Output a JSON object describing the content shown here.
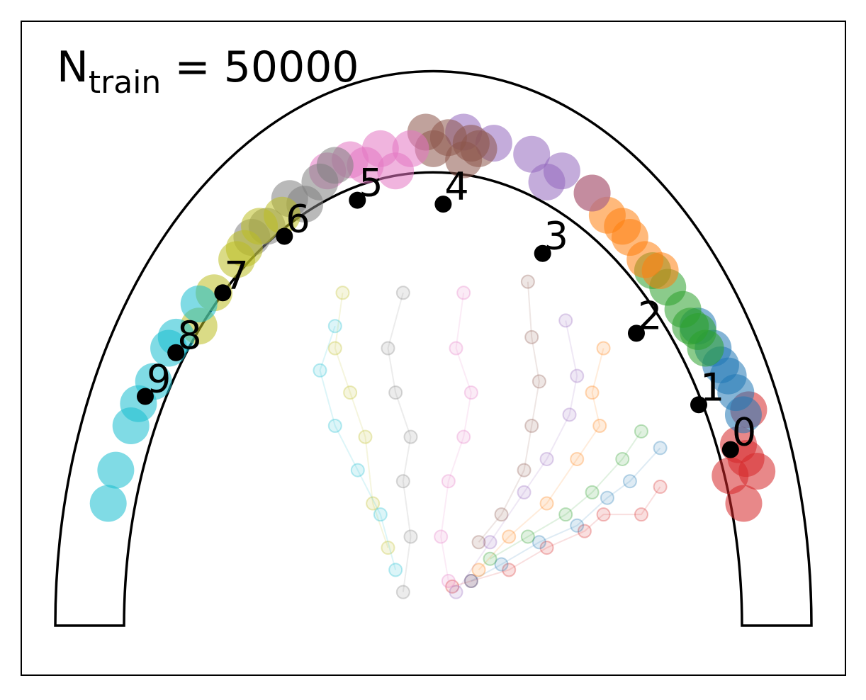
{
  "chart_data": {
    "type": "scatter",
    "annotation": {
      "main": "N",
      "sub": "train",
      "rest": " = 50000"
    },
    "xlim": [
      -1.09,
      1.09
    ],
    "ylim": [
      -0.09,
      1.09
    ],
    "points": {
      "labels": [
        "0",
        "1",
        "2",
        "3",
        "4",
        "5",
        "6",
        "7",
        "8",
        "9"
      ],
      "x": [
        0.786,
        0.702,
        0.537,
        0.289,
        0.026,
        -0.201,
        -0.394,
        -0.557,
        -0.681,
        -0.762
      ],
      "y": [
        0.317,
        0.398,
        0.527,
        0.671,
        0.76,
        0.767,
        0.702,
        0.6,
        0.492,
        0.413
      ],
      "color": "#000000"
    },
    "series": [
      {
        "color": "#d62728",
        "x": [
          0.821,
          0.856,
          0.807,
          0.834,
          0.827,
          0.785
        ],
        "y": [
          0.22,
          0.278,
          0.326,
          0.389,
          0.301,
          0.27
        ],
        "trail_x": [
          0.6,
          0.55,
          0.45,
          0.4,
          0.3,
          0.2,
          0.1,
          0.05
        ],
        "trail_y": [
          0.25,
          0.2,
          0.2,
          0.17,
          0.14,
          0.1,
          0.08,
          0.07
        ]
      },
      {
        "color": "#1f77b4",
        "x": [
          0.82,
          0.78,
          0.74,
          0.8,
          0.7,
          0.76
        ],
        "y": [
          0.38,
          0.45,
          0.5,
          0.42,
          0.54,
          0.47
        ],
        "trail_x": [
          0.6,
          0.52,
          0.46,
          0.38,
          0.28,
          0.18,
          0.1
        ],
        "trail_y": [
          0.32,
          0.26,
          0.23,
          0.18,
          0.15,
          0.11,
          0.08
        ]
      },
      {
        "color": "#2ca02c",
        "x": [
          0.72,
          0.66,
          0.62,
          0.68,
          0.58,
          0.7
        ],
        "y": [
          0.5,
          0.57,
          0.61,
          0.54,
          0.64,
          0.53
        ],
        "trail_x": [
          0.55,
          0.5,
          0.42,
          0.35,
          0.25,
          0.15
        ],
        "trail_y": [
          0.35,
          0.3,
          0.24,
          0.2,
          0.16,
          0.12
        ]
      },
      {
        "color": "#ff7f0e",
        "x": [
          0.6,
          0.52,
          0.46,
          0.56,
          0.42,
          0.5
        ],
        "y": [
          0.64,
          0.7,
          0.74,
          0.66,
          0.78,
          0.72
        ],
        "trail_x": [
          0.45,
          0.42,
          0.44,
          0.38,
          0.3,
          0.2,
          0.12
        ],
        "trail_y": [
          0.5,
          0.42,
          0.36,
          0.3,
          0.22,
          0.16,
          0.1
        ]
      },
      {
        "color": "#9467bd",
        "x": [
          0.42,
          0.34,
          0.26,
          0.16,
          0.08,
          0.3
        ],
        "y": [
          0.78,
          0.82,
          0.85,
          0.87,
          0.89,
          0.8
        ],
        "trail_x": [
          0.35,
          0.38,
          0.36,
          0.3,
          0.24,
          0.15,
          0.06
        ],
        "trail_y": [
          0.55,
          0.45,
          0.38,
          0.3,
          0.24,
          0.15,
          0.06
        ]
      },
      {
        "color": "#8c564b",
        "x": [
          0.12,
          0.04,
          -0.02,
          0.08,
          0,
          0.1
        ],
        "y": [
          0.86,
          0.88,
          0.89,
          0.84,
          0.86,
          0.87
        ],
        "trail_x": [
          0.25,
          0.26,
          0.28,
          0.26,
          0.24,
          0.18,
          0.12
        ],
        "trail_y": [
          0.62,
          0.52,
          0.44,
          0.36,
          0.28,
          0.2,
          0.15
        ]
      },
      {
        "color": "#e377c2",
        "x": [
          -0.06,
          -0.14,
          -0.22,
          -0.1,
          -0.28,
          -0.18
        ],
        "y": [
          0.86,
          0.86,
          0.84,
          0.82,
          0.82,
          0.83
        ],
        "trail_x": [
          0.08,
          0.06,
          0.1,
          0.08,
          0.04,
          0.02,
          0.04
        ],
        "trail_y": [
          0.6,
          0.5,
          0.42,
          0.34,
          0.26,
          0.16,
          0.08
        ]
      },
      {
        "color": "#7f7f7f",
        "x": [
          -0.3,
          -0.38,
          -0.44,
          -0.34,
          -0.48,
          -0.26
        ],
        "y": [
          0.8,
          0.77,
          0.72,
          0.76,
          0.7,
          0.83
        ],
        "trail_x": [
          -0.08,
          -0.12,
          -0.1,
          -0.06,
          -0.08,
          -0.06,
          -0.08
        ],
        "trail_y": [
          0.6,
          0.5,
          0.42,
          0.34,
          0.26,
          0.16,
          0.06
        ]
      },
      {
        "color": "#bcbd22",
        "x": [
          -0.46,
          -0.52,
          -0.58,
          -0.5,
          -0.62,
          -0.4
        ],
        "y": [
          0.72,
          0.66,
          0.6,
          0.68,
          0.54,
          0.74
        ],
        "trail_x": [
          -0.24,
          -0.26,
          -0.22,
          -0.18,
          -0.16,
          -0.12
        ],
        "trail_y": [
          0.6,
          0.5,
          0.42,
          0.34,
          0.22,
          0.14
        ]
      },
      {
        "color": "#17becf",
        "x": [
          -0.62,
          -0.68,
          -0.74,
          -0.8,
          -0.84,
          -0.7,
          -0.78,
          -0.86
        ],
        "y": [
          0.58,
          0.52,
          0.44,
          0.36,
          0.28,
          0.5,
          0.4,
          0.22
        ],
        "trail_x": [
          -0.26,
          -0.3,
          -0.26,
          -0.2,
          -0.14,
          -0.1
        ],
        "trail_y": [
          0.54,
          0.46,
          0.36,
          0.28,
          0.2,
          0.1
        ]
      }
    ]
  }
}
